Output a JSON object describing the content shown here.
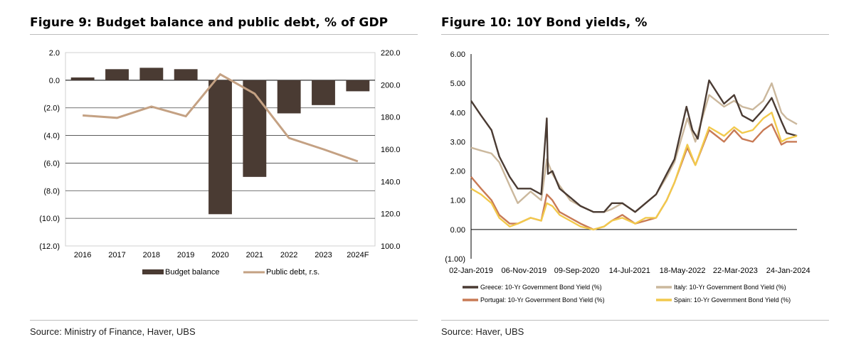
{
  "figures": [
    {
      "title": "Figure 9: Budget balance and public debt, % of GDP",
      "source": "Source: Ministry of Finance, Haver, UBS"
    },
    {
      "title": "Figure 10: 10Y Bond yields, %",
      "source": "Source: Haver, UBS"
    }
  ],
  "chart_data": [
    {
      "type": "bar",
      "categories": [
        "2016",
        "2017",
        "2018",
        "2019",
        "2020",
        "2021",
        "2022",
        "2023",
        "2024F"
      ],
      "series": [
        {
          "name": "Budget balance",
          "type": "bar",
          "axis": "left",
          "color": "#4a3b33",
          "values": [
            0.2,
            0.8,
            0.9,
            0.8,
            -9.7,
            -7.0,
            -2.4,
            -1.8,
            -0.8
          ]
        },
        {
          "name": "Public debt, r.s.",
          "type": "line",
          "axis": "right",
          "color": "#c4a183",
          "values": [
            181,
            179.5,
            186.5,
            180.5,
            206.5,
            194.5,
            167,
            160,
            152.5
          ]
        }
      ],
      "y_left": {
        "min": -12,
        "max": 2,
        "step": 2,
        "tick_labels": [
          "2.0",
          "0.0",
          "(2.0)",
          "(4.0)",
          "(6.0)",
          "(8.0)",
          "(10.0)",
          "(12.0)"
        ]
      },
      "y_right": {
        "min": 100,
        "max": 220,
        "step": 20,
        "tick_labels": [
          "220.0",
          "200.0",
          "180.0",
          "160.0",
          "140.0",
          "120.0",
          "100.0"
        ]
      },
      "grid": true,
      "legend": "bottom"
    },
    {
      "type": "line",
      "x_tick_labels": [
        "02-Jan-2019",
        "06-Nov-2019",
        "09-Sep-2020",
        "14-Jul-2021",
        "18-May-2022",
        "22-Mar-2023",
        "24-Jan-2024"
      ],
      "y": {
        "min": -1,
        "max": 6,
        "step": 1,
        "tick_labels": [
          "6.00",
          "5.00",
          "4.00",
          "3.00",
          "2.00",
          "1.00",
          "0.00",
          "(1.00)"
        ]
      },
      "legend": "bottom",
      "series": [
        {
          "name": "Greece: 10-Yr Government Bond Yield (%)",
          "color": "#4a3b33",
          "x": [
            "2019-01-02",
            "2019-03-01",
            "2019-05-01",
            "2019-06-15",
            "2019-08-15",
            "2019-10-01",
            "2019-12-15",
            "2020-02-15",
            "2020-03-18",
            "2020-03-25",
            "2020-04-20",
            "2020-06-01",
            "2020-08-01",
            "2020-10-01",
            "2020-12-15",
            "2021-02-15",
            "2021-04-01",
            "2021-06-01",
            "2021-08-15",
            "2021-10-15",
            "2021-12-15",
            "2022-02-15",
            "2022-04-01",
            "2022-06-10",
            "2022-07-15",
            "2022-08-15",
            "2022-10-20",
            "2023-01-15",
            "2023-03-15",
            "2023-05-01",
            "2023-07-01",
            "2023-09-01",
            "2023-10-20",
            "2023-12-15",
            "2024-01-15",
            "2024-03-15"
          ],
          "y": [
            4.4,
            3.9,
            3.4,
            2.5,
            1.8,
            1.4,
            1.4,
            1.2,
            3.8,
            1.9,
            2.0,
            1.4,
            1.1,
            0.8,
            0.6,
            0.6,
            0.9,
            0.9,
            0.6,
            0.9,
            1.2,
            1.9,
            2.4,
            4.2,
            3.4,
            3.1,
            5.1,
            4.3,
            4.6,
            3.9,
            3.7,
            4.1,
            4.5,
            3.7,
            3.3,
            3.2
          ]
        },
        {
          "name": "Italy: 10-Yr Government Bond Yield (%)",
          "color": "#cbb89d",
          "x": [
            "2019-01-02",
            "2019-03-01",
            "2019-05-01",
            "2019-06-15",
            "2019-08-15",
            "2019-10-01",
            "2019-12-15",
            "2020-02-15",
            "2020-03-18",
            "2020-04-20",
            "2020-06-01",
            "2020-08-01",
            "2020-10-01",
            "2020-12-15",
            "2021-02-15",
            "2021-04-01",
            "2021-06-01",
            "2021-08-15",
            "2021-10-15",
            "2021-12-15",
            "2022-02-15",
            "2022-04-01",
            "2022-06-15",
            "2022-08-01",
            "2022-10-20",
            "2023-01-15",
            "2023-03-15",
            "2023-05-01",
            "2023-07-01",
            "2023-09-01",
            "2023-10-20",
            "2023-12-15",
            "2024-01-15",
            "2024-03-15"
          ],
          "y": [
            2.8,
            2.7,
            2.6,
            2.3,
            1.5,
            0.9,
            1.3,
            1.0,
            2.4,
            1.9,
            1.5,
            1.0,
            0.8,
            0.6,
            0.6,
            0.7,
            0.9,
            0.6,
            0.9,
            1.2,
            1.8,
            2.3,
            3.8,
            3.0,
            4.6,
            4.2,
            4.4,
            4.2,
            4.1,
            4.4,
            5.0,
            4.0,
            3.8,
            3.6
          ]
        },
        {
          "name": "Portugal: 10-Yr Government Bond Yield (%)",
          "color": "#c87a55",
          "x": [
            "2019-01-02",
            "2019-03-01",
            "2019-05-01",
            "2019-06-15",
            "2019-08-15",
            "2019-10-01",
            "2019-12-15",
            "2020-02-15",
            "2020-03-18",
            "2020-04-20",
            "2020-06-01",
            "2020-08-01",
            "2020-10-01",
            "2020-12-15",
            "2021-02-15",
            "2021-04-01",
            "2021-06-01",
            "2021-08-15",
            "2021-10-15",
            "2021-12-15",
            "2022-02-15",
            "2022-04-01",
            "2022-06-15",
            "2022-08-01",
            "2022-10-20",
            "2023-01-15",
            "2023-03-15",
            "2023-05-01",
            "2023-07-01",
            "2023-09-01",
            "2023-10-20",
            "2023-12-15",
            "2024-01-15",
            "2024-03-15"
          ],
          "y": [
            1.8,
            1.4,
            1.0,
            0.5,
            0.2,
            0.2,
            0.4,
            0.3,
            1.2,
            1.0,
            0.6,
            0.4,
            0.2,
            0.0,
            0.1,
            0.3,
            0.5,
            0.2,
            0.3,
            0.4,
            1.0,
            1.6,
            2.8,
            2.2,
            3.4,
            3.0,
            3.4,
            3.1,
            3.0,
            3.4,
            3.6,
            2.9,
            3.0,
            3.0
          ]
        },
        {
          "name": "Spain: 10-Yr Government Bond Yield (%)",
          "color": "#f2c94c",
          "x": [
            "2019-01-02",
            "2019-03-01",
            "2019-05-01",
            "2019-06-15",
            "2019-08-15",
            "2019-10-01",
            "2019-12-15",
            "2020-02-15",
            "2020-03-18",
            "2020-04-20",
            "2020-06-01",
            "2020-08-01",
            "2020-10-01",
            "2020-12-15",
            "2021-02-15",
            "2021-04-01",
            "2021-06-01",
            "2021-08-15",
            "2021-10-15",
            "2021-12-15",
            "2022-02-15",
            "2022-04-01",
            "2022-06-15",
            "2022-08-01",
            "2022-10-20",
            "2023-01-15",
            "2023-03-15",
            "2023-05-01",
            "2023-07-01",
            "2023-09-01",
            "2023-10-20",
            "2023-12-15",
            "2024-01-15",
            "2024-03-15"
          ],
          "y": [
            1.4,
            1.2,
            0.9,
            0.4,
            0.1,
            0.2,
            0.4,
            0.3,
            0.9,
            0.8,
            0.5,
            0.3,
            0.1,
            0.0,
            0.1,
            0.3,
            0.4,
            0.2,
            0.4,
            0.4,
            1.0,
            1.6,
            2.9,
            2.2,
            3.5,
            3.2,
            3.5,
            3.3,
            3.4,
            3.8,
            4.0,
            3.0,
            3.1,
            3.2
          ]
        }
      ]
    }
  ]
}
